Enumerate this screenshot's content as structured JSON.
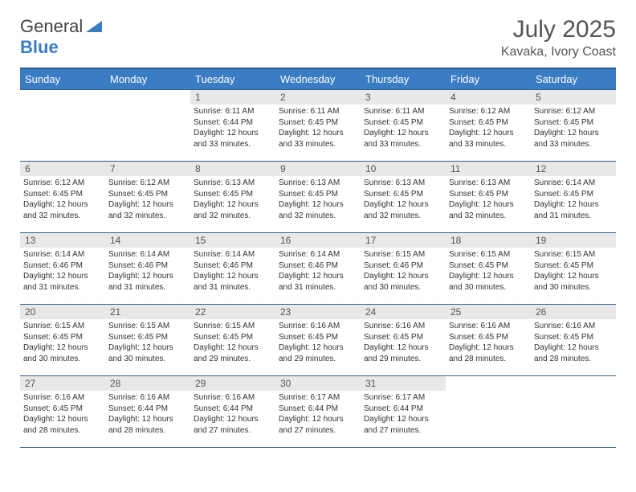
{
  "logo": {
    "part1": "General",
    "part2": "Blue"
  },
  "title": "July 2025",
  "location": "Kavaka, Ivory Coast",
  "colors": {
    "header_bg": "#3b7dc4",
    "header_border": "#2f5f8f",
    "daynum_bg": "#e8e8e8",
    "text": "#333333",
    "title_text": "#555555"
  },
  "weekdays": [
    "Sunday",
    "Monday",
    "Tuesday",
    "Wednesday",
    "Thursday",
    "Friday",
    "Saturday"
  ],
  "weeks": [
    [
      null,
      null,
      {
        "n": "1",
        "sr": "6:11 AM",
        "ss": "6:44 PM",
        "dl": "12 hours and 33 minutes."
      },
      {
        "n": "2",
        "sr": "6:11 AM",
        "ss": "6:45 PM",
        "dl": "12 hours and 33 minutes."
      },
      {
        "n": "3",
        "sr": "6:11 AM",
        "ss": "6:45 PM",
        "dl": "12 hours and 33 minutes."
      },
      {
        "n": "4",
        "sr": "6:12 AM",
        "ss": "6:45 PM",
        "dl": "12 hours and 33 minutes."
      },
      {
        "n": "5",
        "sr": "6:12 AM",
        "ss": "6:45 PM",
        "dl": "12 hours and 33 minutes."
      }
    ],
    [
      {
        "n": "6",
        "sr": "6:12 AM",
        "ss": "6:45 PM",
        "dl": "12 hours and 32 minutes."
      },
      {
        "n": "7",
        "sr": "6:12 AM",
        "ss": "6:45 PM",
        "dl": "12 hours and 32 minutes."
      },
      {
        "n": "8",
        "sr": "6:13 AM",
        "ss": "6:45 PM",
        "dl": "12 hours and 32 minutes."
      },
      {
        "n": "9",
        "sr": "6:13 AM",
        "ss": "6:45 PM",
        "dl": "12 hours and 32 minutes."
      },
      {
        "n": "10",
        "sr": "6:13 AM",
        "ss": "6:45 PM",
        "dl": "12 hours and 32 minutes."
      },
      {
        "n": "11",
        "sr": "6:13 AM",
        "ss": "6:45 PM",
        "dl": "12 hours and 32 minutes."
      },
      {
        "n": "12",
        "sr": "6:14 AM",
        "ss": "6:45 PM",
        "dl": "12 hours and 31 minutes."
      }
    ],
    [
      {
        "n": "13",
        "sr": "6:14 AM",
        "ss": "6:46 PM",
        "dl": "12 hours and 31 minutes."
      },
      {
        "n": "14",
        "sr": "6:14 AM",
        "ss": "6:46 PM",
        "dl": "12 hours and 31 minutes."
      },
      {
        "n": "15",
        "sr": "6:14 AM",
        "ss": "6:46 PM",
        "dl": "12 hours and 31 minutes."
      },
      {
        "n": "16",
        "sr": "6:14 AM",
        "ss": "6:46 PM",
        "dl": "12 hours and 31 minutes."
      },
      {
        "n": "17",
        "sr": "6:15 AM",
        "ss": "6:46 PM",
        "dl": "12 hours and 30 minutes."
      },
      {
        "n": "18",
        "sr": "6:15 AM",
        "ss": "6:45 PM",
        "dl": "12 hours and 30 minutes."
      },
      {
        "n": "19",
        "sr": "6:15 AM",
        "ss": "6:45 PM",
        "dl": "12 hours and 30 minutes."
      }
    ],
    [
      {
        "n": "20",
        "sr": "6:15 AM",
        "ss": "6:45 PM",
        "dl": "12 hours and 30 minutes."
      },
      {
        "n": "21",
        "sr": "6:15 AM",
        "ss": "6:45 PM",
        "dl": "12 hours and 30 minutes."
      },
      {
        "n": "22",
        "sr": "6:15 AM",
        "ss": "6:45 PM",
        "dl": "12 hours and 29 minutes."
      },
      {
        "n": "23",
        "sr": "6:16 AM",
        "ss": "6:45 PM",
        "dl": "12 hours and 29 minutes."
      },
      {
        "n": "24",
        "sr": "6:16 AM",
        "ss": "6:45 PM",
        "dl": "12 hours and 29 minutes."
      },
      {
        "n": "25",
        "sr": "6:16 AM",
        "ss": "6:45 PM",
        "dl": "12 hours and 28 minutes."
      },
      {
        "n": "26",
        "sr": "6:16 AM",
        "ss": "6:45 PM",
        "dl": "12 hours and 28 minutes."
      }
    ],
    [
      {
        "n": "27",
        "sr": "6:16 AM",
        "ss": "6:45 PM",
        "dl": "12 hours and 28 minutes."
      },
      {
        "n": "28",
        "sr": "6:16 AM",
        "ss": "6:44 PM",
        "dl": "12 hours and 28 minutes."
      },
      {
        "n": "29",
        "sr": "6:16 AM",
        "ss": "6:44 PM",
        "dl": "12 hours and 27 minutes."
      },
      {
        "n": "30",
        "sr": "6:17 AM",
        "ss": "6:44 PM",
        "dl": "12 hours and 27 minutes."
      },
      {
        "n": "31",
        "sr": "6:17 AM",
        "ss": "6:44 PM",
        "dl": "12 hours and 27 minutes."
      },
      null,
      null
    ]
  ],
  "labels": {
    "sunrise": "Sunrise:",
    "sunset": "Sunset:",
    "daylight": "Daylight:"
  }
}
